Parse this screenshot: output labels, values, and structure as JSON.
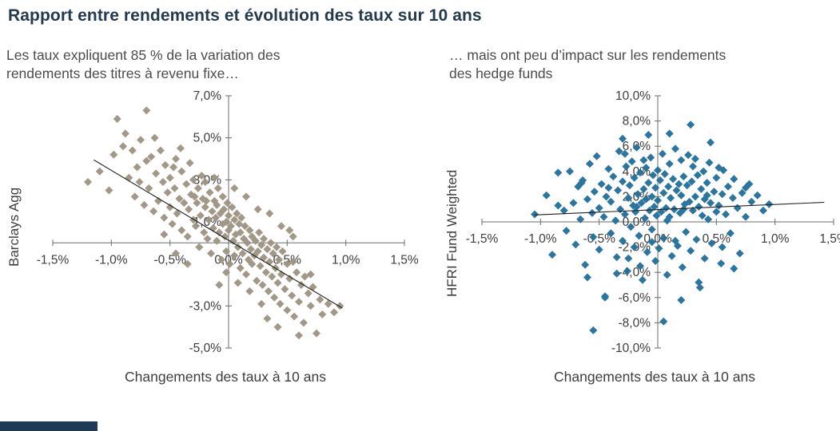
{
  "header": {
    "title": "Rapport entre rendements et évolution des taux sur 10 ans"
  },
  "footer": {
    "bar_color": "#1f3a56"
  },
  "chart_data": [
    {
      "type": "scatter",
      "subtitle": "Les taux expliquent 85 % de la variation des\nrendements des titres à revenu fixe…",
      "xlabel": "Changements des taux à 10 ans",
      "ylabel": "Barclays Agg",
      "xlim": [
        -1.5,
        1.5
      ],
      "ylim": [
        -5,
        7
      ],
      "x_ticks": [
        -1.5,
        -1,
        -0.5,
        0,
        0.5,
        1,
        1.5
      ],
      "x_tick_labels": [
        "-1,5%",
        "-1,0%",
        "-0,5%",
        "0,0%",
        "0,5%",
        "1,0%",
        "1,5%"
      ],
      "y_ticks": [
        7,
        5,
        3,
        1,
        -1,
        -3,
        -5
      ],
      "y_tick_labels": [
        "7,0%",
        "5,0%",
        "3,0%",
        "1,0%",
        "",
        "-3,0%",
        "-5,0%"
      ],
      "marker_color": "#9c9282",
      "trend": {
        "x1": -1.15,
        "y1": 3.95,
        "x2": 0.97,
        "y2": -3.1,
        "color": "#1f1f1f"
      },
      "points": [
        [
          -1.2,
          2.9
        ],
        [
          -1.02,
          2.5
        ],
        [
          -0.95,
          5.9
        ],
        [
          -0.9,
          4.6
        ],
        [
          -0.85,
          3.1
        ],
        [
          -0.82,
          4.4
        ],
        [
          -0.8,
          2.2
        ],
        [
          -0.78,
          3.6
        ],
        [
          -0.75,
          4.9
        ],
        [
          -0.72,
          1.8
        ],
        [
          -0.7,
          3.9
        ],
        [
          -0.68,
          2.6
        ],
        [
          -0.66,
          4.1
        ],
        [
          -0.64,
          1.5
        ],
        [
          -0.62,
          3.3
        ],
        [
          -0.6,
          2.0
        ],
        [
          -0.58,
          4.4
        ],
        [
          -0.56,
          2.9
        ],
        [
          -0.55,
          1.2
        ],
        [
          -0.54,
          3.7
        ],
        [
          -0.52,
          2.4
        ],
        [
          -0.5,
          1.7
        ],
        [
          -0.5,
          3.1
        ],
        [
          -0.48,
          0.9
        ],
        [
          -0.46,
          2.6
        ],
        [
          -0.45,
          4.0
        ],
        [
          -0.44,
          1.4
        ],
        [
          -0.42,
          2.1
        ],
        [
          -0.4,
          3.4
        ],
        [
          -0.4,
          0.6
        ],
        [
          -0.38,
          1.9
        ],
        [
          -0.36,
          2.8
        ],
        [
          -0.35,
          0.3
        ],
        [
          -0.34,
          1.6
        ],
        [
          -0.32,
          2.3
        ],
        [
          -0.3,
          1.1
        ],
        [
          -0.3,
          3.0
        ],
        [
          -0.28,
          0.8
        ],
        [
          -0.27,
          1.9
        ],
        [
          -0.26,
          2.6
        ],
        [
          -0.25,
          -0.2
        ],
        [
          -0.24,
          1.3
        ],
        [
          -0.22,
          2.1
        ],
        [
          -0.21,
          0.5
        ],
        [
          -0.2,
          1.7
        ],
        [
          -0.2,
          2.9
        ],
        [
          -0.18,
          0.2
        ],
        [
          -0.17,
          1.1
        ],
        [
          -0.16,
          2.4
        ],
        [
          -0.15,
          -0.5
        ],
        [
          -0.14,
          1.5
        ],
        [
          -0.13,
          0.7
        ],
        [
          -0.12,
          2.0
        ],
        [
          -0.11,
          1.2
        ],
        [
          -0.1,
          0.1
        ],
        [
          -0.1,
          1.8
        ],
        [
          -0.09,
          2.6
        ],
        [
          -0.08,
          0.5
        ],
        [
          -0.07,
          1.4
        ],
        [
          -0.06,
          -0.8
        ],
        [
          -0.05,
          0.9
        ],
        [
          -0.05,
          2.2
        ],
        [
          -0.04,
          1.6
        ],
        [
          -0.03,
          0.3
        ],
        [
          -0.02,
          1.0
        ],
        [
          -0.02,
          -0.4
        ],
        [
          -0.01,
          1.9
        ],
        [
          0.0,
          0.6
        ],
        [
          0.0,
          1.3
        ],
        [
          0.01,
          -1.0
        ],
        [
          0.02,
          0.8
        ],
        [
          0.03,
          1.7
        ],
        [
          0.04,
          0.1
        ],
        [
          0.05,
          1.1
        ],
        [
          0.05,
          -0.6
        ],
        [
          0.06,
          0.4
        ],
        [
          0.07,
          1.4
        ],
        [
          0.08,
          -0.2
        ],
        [
          0.09,
          0.9
        ],
        [
          0.1,
          -1.2
        ],
        [
          0.1,
          0.5
        ],
        [
          0.11,
          1.2
        ],
        [
          0.12,
          -0.5
        ],
        [
          0.13,
          0.2
        ],
        [
          0.14,
          0.8
        ],
        [
          0.15,
          -1.5
        ],
        [
          0.16,
          0.0
        ],
        [
          0.17,
          -0.8
        ],
        [
          0.18,
          0.6
        ],
        [
          0.19,
          -0.3
        ],
        [
          0.2,
          -1.0
        ],
        [
          0.2,
          0.3
        ],
        [
          0.22,
          -0.6
        ],
        [
          0.23,
          0.1
        ],
        [
          0.24,
          -1.8
        ],
        [
          0.25,
          -0.4
        ],
        [
          0.26,
          0.5
        ],
        [
          0.27,
          -1.1
        ],
        [
          0.28,
          -0.1
        ],
        [
          0.29,
          -2.0
        ],
        [
          0.3,
          -0.7
        ],
        [
          0.3,
          0.2
        ],
        [
          0.32,
          -1.4
        ],
        [
          0.33,
          -0.3
        ],
        [
          0.34,
          -2.3
        ],
        [
          0.35,
          -0.9
        ],
        [
          0.36,
          0.0
        ],
        [
          0.37,
          -1.6
        ],
        [
          0.38,
          -0.5
        ],
        [
          0.39,
          -2.6
        ],
        [
          0.4,
          -1.2
        ],
        [
          0.41,
          -0.2
        ],
        [
          0.42,
          -1.9
        ],
        [
          0.43,
          -0.8
        ],
        [
          0.44,
          -2.9
        ],
        [
          0.45,
          -1.5
        ],
        [
          0.46,
          -0.4
        ],
        [
          0.48,
          -2.2
        ],
        [
          0.5,
          -1.0
        ],
        [
          0.5,
          -3.2
        ],
        [
          0.52,
          -1.7
        ],
        [
          0.54,
          -2.5
        ],
        [
          0.55,
          -0.9
        ],
        [
          0.56,
          -3.5
        ],
        [
          0.58,
          -1.4
        ],
        [
          0.6,
          -2.8
        ],
        [
          0.62,
          -2.0
        ],
        [
          0.64,
          -3.8
        ],
        [
          0.65,
          -1.6
        ],
        [
          0.68,
          -2.4
        ],
        [
          0.7,
          -3.0
        ],
        [
          0.72,
          -2.1
        ],
        [
          0.75,
          -4.3
        ],
        [
          0.78,
          -2.7
        ],
        [
          0.8,
          -3.4
        ],
        [
          0.85,
          -2.9
        ],
        [
          0.9,
          -3.3
        ],
        [
          0.95,
          -3.0
        ],
        [
          -1.1,
          3.4
        ],
        [
          -0.98,
          4.2
        ],
        [
          -0.88,
          5.2
        ],
        [
          -0.76,
          2.9
        ],
        [
          -0.63,
          5.0
        ],
        [
          -0.47,
          3.6
        ],
        [
          -0.41,
          4.5
        ],
        [
          -0.33,
          3.8
        ],
        [
          -0.29,
          2.2
        ],
        [
          -0.23,
          3.2
        ],
        [
          -0.19,
          2.0
        ],
        [
          -0.12,
          3.1
        ],
        [
          -0.7,
          6.3
        ],
        [
          0.35,
          1.4
        ],
        [
          0.45,
          0.8
        ],
        [
          0.55,
          0.3
        ],
        [
          -0.35,
          -1.0
        ],
        [
          -0.45,
          -0.5
        ],
        [
          0.15,
          2.2
        ],
        [
          0.25,
          1.6
        ],
        [
          -0.55,
          0.4
        ],
        [
          0.05,
          2.6
        ],
        [
          0.33,
          -3.6
        ],
        [
          0.42,
          -4.0
        ],
        [
          0.28,
          -2.9
        ],
        [
          0.18,
          -2.3
        ],
        [
          0.08,
          -1.9
        ],
        [
          -0.02,
          -1.4
        ],
        [
          -0.08,
          -2.0
        ],
        [
          0.6,
          -4.4
        ],
        [
          0.7,
          -1.5
        ],
        [
          0.52,
          0.6
        ]
      ]
    },
    {
      "type": "scatter",
      "subtitle": "… mais ont peu d’impact sur les rendements\ndes hedge funds",
      "xlabel": "Changements des taux à 10 ans",
      "ylabel": "HFRI Fund Weighted",
      "xlim": [
        -1.5,
        1.5
      ],
      "ylim": [
        -10,
        10
      ],
      "x_ticks": [
        -1.5,
        -1,
        -0.5,
        0,
        0.5,
        1,
        1.5
      ],
      "x_tick_labels": [
        "-1,5%",
        "-1,0%",
        "-0,5%",
        "0,0%",
        "0,5%",
        "1,0%",
        "1,5%"
      ],
      "y_ticks": [
        10,
        8,
        6,
        4,
        2,
        0,
        -2,
        -4,
        -6,
        -8,
        -10
      ],
      "y_tick_labels": [
        "10,0%",
        "8,0%",
        "6,0%",
        "4,0%",
        "2,0%",
        "0,0%",
        "-2,0%",
        "-4,0%",
        "-6,0%",
        "-8,0%",
        "-10,0%"
      ],
      "marker_color": "#1f6f9b",
      "trend": {
        "x1": -1.05,
        "y1": 0.55,
        "x2": 1.42,
        "y2": 1.55,
        "color": "#1f1f1f"
      },
      "points": [
        [
          -1.05,
          0.6
        ],
        [
          -0.95,
          2.1
        ],
        [
          -0.9,
          -2.6
        ],
        [
          -0.85,
          3.9
        ],
        [
          -0.8,
          0.9
        ],
        [
          -0.78,
          -0.7
        ],
        [
          -0.75,
          4.0
        ],
        [
          -0.72,
          1.5
        ],
        [
          -0.7,
          -1.8
        ],
        [
          -0.68,
          2.8
        ],
        [
          -0.66,
          0.2
        ],
        [
          -0.64,
          3.3
        ],
        [
          -0.62,
          -3.4
        ],
        [
          -0.6,
          1.8
        ],
        [
          -0.58,
          4.6
        ],
        [
          -0.56,
          0.7
        ],
        [
          -0.55,
          -1.2
        ],
        [
          -0.54,
          2.4
        ],
        [
          -0.52,
          5.2
        ],
        [
          -0.5,
          1.1
        ],
        [
          -0.5,
          -2.2
        ],
        [
          -0.48,
          3.0
        ],
        [
          -0.46,
          0.4
        ],
        [
          -0.45,
          -5.9
        ],
        [
          -0.44,
          2.0
        ],
        [
          -0.42,
          4.2
        ],
        [
          -0.4,
          -0.9
        ],
        [
          -0.4,
          1.6
        ],
        [
          -0.38,
          3.6
        ],
        [
          -0.36,
          0.1
        ],
        [
          -0.35,
          -2.8
        ],
        [
          -0.34,
          2.5
        ],
        [
          -0.33,
          5.6
        ],
        [
          -0.32,
          1.0
        ],
        [
          -0.3,
          -1.5
        ],
        [
          -0.3,
          3.2
        ],
        [
          -0.28,
          0.6
        ],
        [
          -0.27,
          4.4
        ],
        [
          -0.26,
          -3.9
        ],
        [
          -0.25,
          1.9
        ],
        [
          -0.24,
          2.9
        ],
        [
          -0.23,
          -0.4
        ],
        [
          -0.22,
          4.8
        ],
        [
          -0.21,
          1.3
        ],
        [
          -0.2,
          -2.0
        ],
        [
          -0.2,
          3.5
        ],
        [
          -0.19,
          0.8
        ],
        [
          -0.18,
          5.9
        ],
        [
          -0.17,
          2.2
        ],
        [
          -0.16,
          -1.1
        ],
        [
          -0.15,
          3.9
        ],
        [
          -0.14,
          1.5
        ],
        [
          -0.13,
          -4.6
        ],
        [
          -0.12,
          2.6
        ],
        [
          -0.11,
          0.3
        ],
        [
          -0.1,
          4.3
        ],
        [
          -0.1,
          1.8
        ],
        [
          -0.09,
          -2.4
        ],
        [
          -0.08,
          3.1
        ],
        [
          -0.07,
          0.9
        ],
        [
          -0.06,
          5.1
        ],
        [
          -0.05,
          2.0
        ],
        [
          -0.05,
          -1.6
        ],
        [
          -0.04,
          3.7
        ],
        [
          -0.03,
          1.2
        ],
        [
          -0.02,
          -3.1
        ],
        [
          -0.02,
          2.7
        ],
        [
          -0.01,
          0.5
        ],
        [
          0.0,
          4.1
        ],
        [
          0.0,
          1.7
        ],
        [
          0.01,
          -2.1
        ],
        [
          0.02,
          3.3
        ],
        [
          0.03,
          0.8
        ],
        [
          0.04,
          5.4
        ],
        [
          0.05,
          2.3
        ],
        [
          0.05,
          -1.3
        ],
        [
          0.06,
          3.8
        ],
        [
          0.07,
          1.1
        ],
        [
          0.08,
          -4.2
        ],
        [
          0.09,
          2.8
        ],
        [
          0.1,
          0.4
        ],
        [
          0.1,
          4.6
        ],
        [
          0.11,
          1.9
        ],
        [
          0.12,
          -2.7
        ],
        [
          0.13,
          3.4
        ],
        [
          0.14,
          1.0
        ],
        [
          0.15,
          5.8
        ],
        [
          0.16,
          2.5
        ],
        [
          0.17,
          -1.9
        ],
        [
          0.18,
          3.0
        ],
        [
          0.19,
          0.7
        ],
        [
          0.2,
          4.9
        ],
        [
          0.2,
          2.1
        ],
        [
          0.21,
          -3.6
        ],
        [
          0.22,
          3.6
        ],
        [
          0.23,
          1.4
        ],
        [
          0.24,
          -0.8
        ],
        [
          0.25,
          2.9
        ],
        [
          0.26,
          5.3
        ],
        [
          0.27,
          1.6
        ],
        [
          0.28,
          -2.3
        ],
        [
          0.29,
          3.2
        ],
        [
          0.3,
          0.9
        ],
        [
          0.3,
          4.4
        ],
        [
          0.32,
          2.0
        ],
        [
          0.33,
          -1.4
        ],
        [
          0.34,
          3.7
        ],
        [
          0.35,
          1.2
        ],
        [
          0.36,
          -5.2
        ],
        [
          0.37,
          2.6
        ],
        [
          0.38,
          0.5
        ],
        [
          0.39,
          4.0
        ],
        [
          0.4,
          1.8
        ],
        [
          0.4,
          -2.9
        ],
        [
          0.42,
          3.1
        ],
        [
          0.43,
          0.2
        ],
        [
          0.44,
          4.7
        ],
        [
          0.45,
          1.5
        ],
        [
          0.46,
          -1.7
        ],
        [
          0.48,
          2.4
        ],
        [
          0.5,
          0.8
        ],
        [
          0.5,
          3.5
        ],
        [
          0.52,
          1.3
        ],
        [
          0.54,
          -3.3
        ],
        [
          0.55,
          2.2
        ],
        [
          0.56,
          4.1
        ],
        [
          0.58,
          0.6
        ],
        [
          0.6,
          2.8
        ],
        [
          0.62,
          -0.9
        ],
        [
          0.64,
          1.9
        ],
        [
          0.65,
          3.4
        ],
        [
          0.68,
          1.1
        ],
        [
          0.7,
          -2.5
        ],
        [
          0.72,
          2.3
        ],
        [
          0.75,
          0.4
        ],
        [
          0.78,
          3.0
        ],
        [
          0.8,
          1.6
        ],
        [
          0.85,
          2.1
        ],
        [
          0.9,
          0.9
        ],
        [
          0.95,
          1.4
        ],
        [
          0.28,
          7.7
        ],
        [
          0.1,
          7.0
        ],
        [
          -0.3,
          6.6
        ],
        [
          0.45,
          6.3
        ],
        [
          -0.08,
          6.9
        ],
        [
          0.2,
          -6.2
        ],
        [
          -0.45,
          -6.0
        ],
        [
          0.05,
          -7.9
        ],
        [
          -0.55,
          -8.6
        ],
        [
          0.35,
          -4.8
        ],
        [
          -0.6,
          -4.4
        ],
        [
          -0.35,
          -4.1
        ],
        [
          0.55,
          -2.0
        ],
        [
          0.65,
          -3.7
        ],
        [
          -0.15,
          -3.5
        ],
        [
          -0.25,
          -2.9
        ],
        [
          0.15,
          -1.5
        ],
        [
          -0.05,
          -0.6
        ],
        [
          0.08,
          0.1
        ],
        [
          -0.18,
          1.2
        ],
        [
          -0.42,
          2.7
        ],
        [
          -0.12,
          4.9
        ],
        [
          0.32,
          5.0
        ],
        [
          0.52,
          4.3
        ],
        [
          -0.28,
          5.4
        ],
        [
          -0.65,
          3.1
        ],
        [
          0.75,
          2.7
        ],
        [
          -0.85,
          1.3
        ],
        [
          0.42,
          2.1
        ],
        [
          0.22,
          1.0
        ]
      ]
    }
  ]
}
